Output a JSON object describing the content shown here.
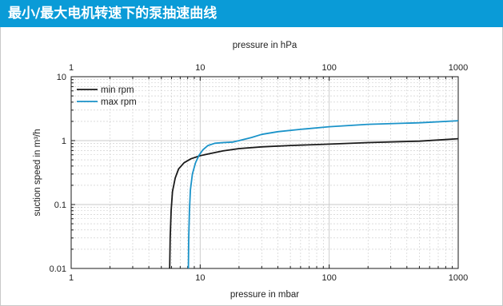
{
  "header": {
    "title": "最小/最大电机转速下的泵抽速曲线"
  },
  "colors": {
    "header_bg": "#0a9bd7",
    "min_rpm": "#1a1a1a",
    "max_rpm": "#1a93c9",
    "grid": "#c8c8c8"
  },
  "chart_data": {
    "type": "line",
    "title": "",
    "xlabel": "pressure in mbar",
    "x2label": "pressure in hPa",
    "ylabel": "suction speed in m³/h",
    "x_scale": "log",
    "y_scale": "log",
    "xlim": [
      1,
      1000
    ],
    "ylim": [
      0.01,
      10
    ],
    "x_ticks": [
      "1",
      "10",
      "100",
      "1000"
    ],
    "x2_ticks": [
      "1",
      "10",
      "100",
      "1000"
    ],
    "y_ticks": [
      "0.01",
      "0.1",
      "1",
      "10"
    ],
    "grid": true,
    "legend": "top-left",
    "series": [
      {
        "name": "min rpm",
        "color": "#1a1a1a",
        "points": [
          [
            5.8,
            0.01
          ],
          [
            5.85,
            0.03
          ],
          [
            5.95,
            0.08
          ],
          [
            6.1,
            0.16
          ],
          [
            6.4,
            0.26
          ],
          [
            6.8,
            0.36
          ],
          [
            7.5,
            0.45
          ],
          [
            8.5,
            0.52
          ],
          [
            10,
            0.58
          ],
          [
            12,
            0.63
          ],
          [
            15,
            0.69
          ],
          [
            20,
            0.75
          ],
          [
            30,
            0.8
          ],
          [
            50,
            0.84
          ],
          [
            100,
            0.88
          ],
          [
            200,
            0.93
          ],
          [
            500,
            0.98
          ],
          [
            1000,
            1.07
          ]
        ]
      },
      {
        "name": "max rpm",
        "color": "#1a93c9",
        "points": [
          [
            8.1,
            0.01
          ],
          [
            8.15,
            0.03
          ],
          [
            8.25,
            0.08
          ],
          [
            8.4,
            0.17
          ],
          [
            8.7,
            0.3
          ],
          [
            9.2,
            0.45
          ],
          [
            9.8,
            0.59
          ],
          [
            10.5,
            0.72
          ],
          [
            11.5,
            0.84
          ],
          [
            13,
            0.91
          ],
          [
            15,
            0.93
          ],
          [
            18,
            0.95
          ],
          [
            20,
            1.0
          ],
          [
            25,
            1.12
          ],
          [
            30,
            1.25
          ],
          [
            40,
            1.38
          ],
          [
            60,
            1.5
          ],
          [
            100,
            1.65
          ],
          [
            200,
            1.8
          ],
          [
            500,
            1.9
          ],
          [
            1000,
            2.05
          ]
        ]
      }
    ]
  }
}
